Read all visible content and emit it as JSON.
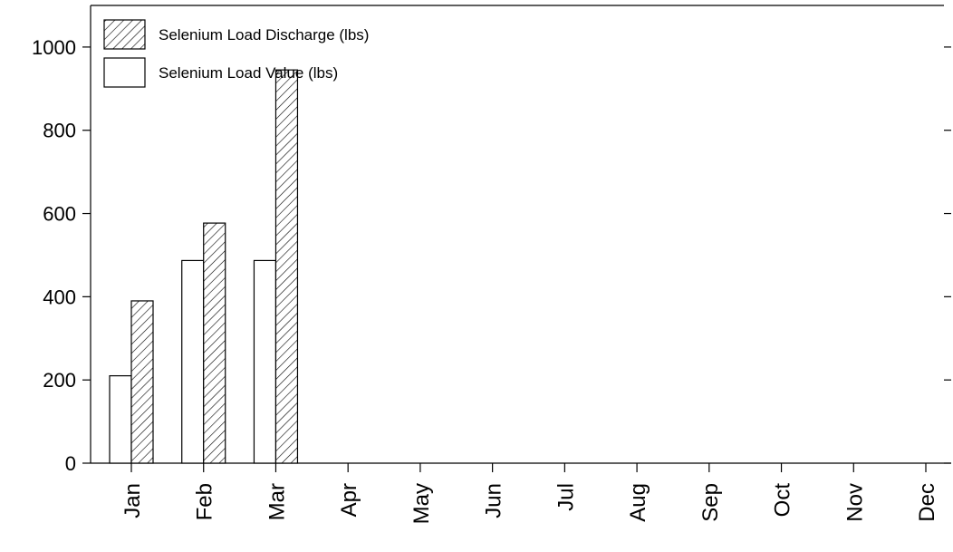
{
  "chart_data": {
    "type": "bar",
    "title": "",
    "xlabel": "",
    "ylabel": "",
    "categories": [
      "Jan",
      "Feb",
      "Mar",
      "Apr",
      "May",
      "Jun",
      "Jul",
      "Aug",
      "Sep",
      "Oct",
      "Nov",
      "Dec"
    ],
    "series": [
      {
        "name": "Selenium Load Value (lbs)",
        "pattern": "solid-white",
        "values": [
          210,
          487,
          487,
          null,
          null,
          null,
          null,
          null,
          null,
          null,
          null,
          null
        ]
      },
      {
        "name": "Selenium Load Discharge (lbs)",
        "pattern": "diagonal-hatch",
        "values": [
          390,
          577,
          945,
          null,
          null,
          null,
          null,
          null,
          null,
          null,
          null,
          null
        ]
      }
    ],
    "ylim": [
      0,
      1100
    ],
    "yticks": [
      0,
      200,
      400,
      600,
      800,
      1000
    ],
    "legend_position": "top-left",
    "grid": false
  },
  "legend": {
    "items": [
      {
        "label": "Selenium Load Discharge (lbs)",
        "pattern": "diagonal-hatch"
      },
      {
        "label": "Selenium Load Value (lbs)",
        "pattern": "solid-white"
      }
    ]
  }
}
